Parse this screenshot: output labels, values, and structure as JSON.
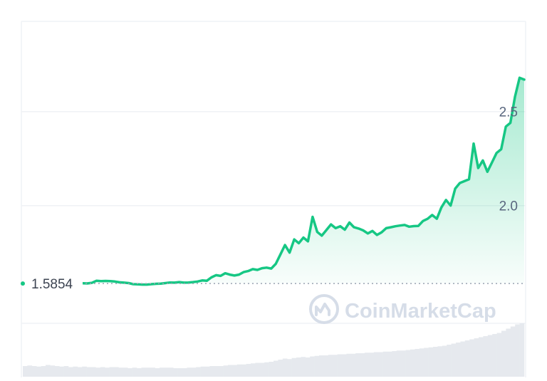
{
  "chart_data": {
    "type": "area",
    "title": "",
    "xlabel": "",
    "ylabel": "",
    "ylim": [
      1.37,
      2.98
    ],
    "y_ticks": [
      {
        "value": 2.5,
        "label": "2.5"
      },
      {
        "value": 2.0,
        "label": "2.0"
      }
    ],
    "reference_line": {
      "value": 1.5854,
      "label": "1.5854"
    },
    "grid": true,
    "legend": "none",
    "series": [
      {
        "color": "#16c784",
        "values": [
          1.585,
          1.585,
          1.587,
          1.584,
          1.588,
          1.587,
          1.589,
          1.59,
          1.595,
          1.593,
          1.59,
          1.591,
          1.588,
          1.587,
          1.586,
          1.589,
          1.6,
          1.598,
          1.599,
          1.598,
          1.596,
          1.592,
          1.59,
          1.588,
          1.582,
          1.581,
          1.58,
          1.58,
          1.582,
          1.584,
          1.585,
          1.588,
          1.591,
          1.59,
          1.593,
          1.59,
          1.591,
          1.593,
          1.596,
          1.602,
          1.6,
          1.618,
          1.63,
          1.626,
          1.64,
          1.633,
          1.628,
          1.633,
          1.646,
          1.652,
          1.662,
          1.658,
          1.667,
          1.67,
          1.665,
          1.69,
          1.74,
          1.79,
          1.75,
          1.82,
          1.8,
          1.83,
          1.81,
          1.94,
          1.86,
          1.84,
          1.87,
          1.9,
          1.88,
          1.89,
          1.872,
          1.91,
          1.885,
          1.878,
          1.868,
          1.852,
          1.865,
          1.844,
          1.858,
          1.88,
          1.885,
          1.89,
          1.894,
          1.897,
          1.888,
          1.891,
          1.892,
          1.918,
          1.93,
          1.95,
          1.93,
          1.99,
          2.03,
          2.0,
          2.09,
          2.12,
          2.13,
          2.14,
          2.33,
          2.2,
          2.24,
          2.18,
          2.23,
          2.28,
          2.3,
          2.42,
          2.44,
          2.58,
          2.68,
          2.67
        ]
      }
    ],
    "volume": {
      "color": "#e6e9ee",
      "values": [
        0.2,
        0.21,
        0.2,
        0.19,
        0.2,
        0.22,
        0.21,
        0.2,
        0.19,
        0.2,
        0.18,
        0.19,
        0.18,
        0.19,
        0.18,
        0.18,
        0.17,
        0.18,
        0.17,
        0.18,
        0.18,
        0.17,
        0.17,
        0.16,
        0.17,
        0.16,
        0.17,
        0.17,
        0.17,
        0.16,
        0.17,
        0.17,
        0.17,
        0.16,
        0.16,
        0.16,
        0.17,
        0.17,
        0.18,
        0.19,
        0.19,
        0.2,
        0.2,
        0.2,
        0.21,
        0.22,
        0.22,
        0.23,
        0.23,
        0.24,
        0.25,
        0.26,
        0.26,
        0.27,
        0.28,
        0.3,
        0.32,
        0.34,
        0.33,
        0.35,
        0.36,
        0.37,
        0.36,
        0.38,
        0.39,
        0.4,
        0.4,
        0.41,
        0.41,
        0.42,
        0.42,
        0.43,
        0.43,
        0.44,
        0.44,
        0.45,
        0.45,
        0.46,
        0.46,
        0.47,
        0.47,
        0.48,
        0.49,
        0.49,
        0.5,
        0.51,
        0.52,
        0.53,
        0.54,
        0.55,
        0.56,
        0.57,
        0.58,
        0.6,
        0.62,
        0.64,
        0.66,
        0.68,
        0.7,
        0.72,
        0.74,
        0.76,
        0.78,
        0.8,
        0.82,
        0.86,
        0.9,
        0.94,
        0.98,
        1.0
      ]
    }
  },
  "watermark": {
    "text": "CoinMarketCap",
    "icon": "coinmarketcap-logo-icon",
    "color": "#d6dde8"
  }
}
